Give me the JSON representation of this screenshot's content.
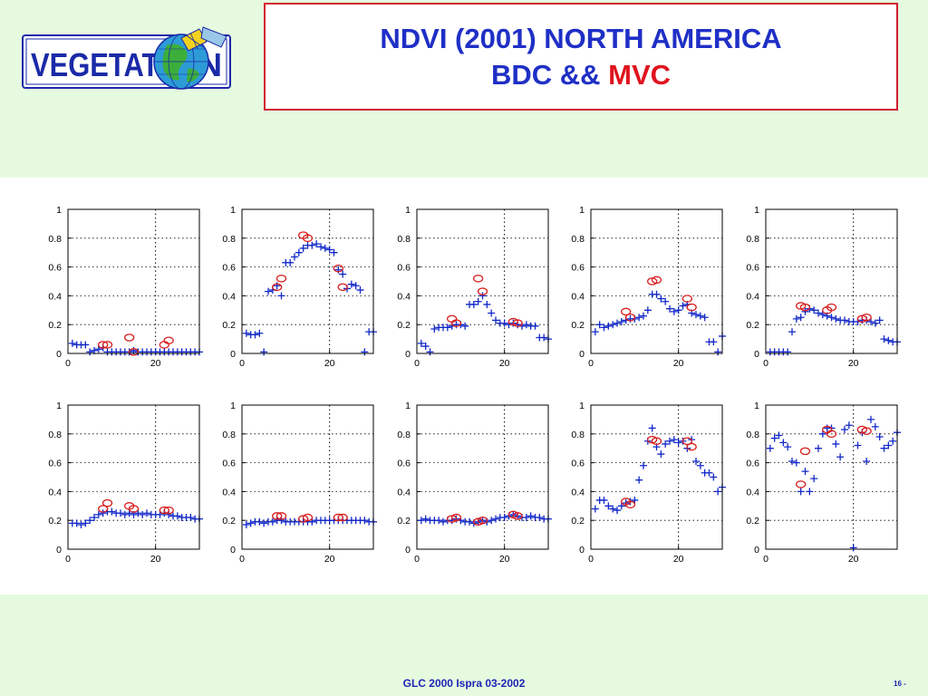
{
  "logo": {
    "text": "VEGETATI",
    "text_end": "N",
    "color": "#1a2aa8"
  },
  "header": {
    "title_line1": "NDVI (2001) NORTH AMERICA",
    "title_line2_prefix": "BDC && ",
    "title_line2_accent": "MVC"
  },
  "footer": {
    "text": "GLC 2000 Ispra 03-2002",
    "page": "16 -"
  },
  "colors": {
    "bdc": "#1228c8",
    "mvc": "#d81e1e",
    "title": "#1f2fc6",
    "accent": "#e0141e",
    "band": "#e6fae0"
  },
  "chart_data": [
    {
      "type": "scatter",
      "xlim": [
        0,
        30
      ],
      "ylim": [
        0,
        1
      ],
      "xticks": [
        0,
        20
      ],
      "yticks": [
        0,
        0.2,
        0.4,
        0.6,
        0.8,
        1
      ],
      "vline": 20,
      "series": [
        {
          "marker": "plus",
          "x": [
            1,
            2,
            3,
            4,
            5,
            6,
            7,
            8,
            9,
            10,
            11,
            12,
            13,
            14,
            15,
            16,
            17,
            18,
            19,
            20,
            21,
            22,
            23,
            24,
            25,
            26,
            27,
            28,
            29,
            30
          ],
          "y": [
            0.07,
            0.06,
            0.06,
            0.06,
            0.01,
            0.02,
            0.03,
            0.04,
            0.01,
            0.01,
            0.01,
            0.01,
            0.01,
            0.01,
            0.02,
            0.01,
            0.01,
            0.01,
            0.01,
            0.01,
            0.01,
            0.01,
            0.01,
            0.01,
            0.01,
            0.01,
            0.01,
            0.01,
            0.01,
            0.01
          ]
        },
        {
          "marker": "circle",
          "x": [
            8,
            9,
            14,
            15,
            22,
            23
          ],
          "y": [
            0.06,
            0.06,
            0.11,
            0.01,
            0.06,
            0.09
          ]
        }
      ]
    },
    {
      "type": "scatter",
      "xlim": [
        0,
        30
      ],
      "ylim": [
        0,
        1
      ],
      "xticks": [
        0,
        20
      ],
      "yticks": [
        0,
        0.2,
        0.4,
        0.6,
        0.8,
        1
      ],
      "vline": 20,
      "series": [
        {
          "marker": "plus",
          "x": [
            1,
            2,
            3,
            4,
            5,
            6,
            7,
            8,
            9,
            10,
            11,
            12,
            13,
            14,
            15,
            16,
            17,
            18,
            19,
            20,
            21,
            22,
            23,
            24,
            25,
            26,
            27,
            28,
            29,
            30
          ],
          "y": [
            0.14,
            0.13,
            0.13,
            0.14,
            0.01,
            0.43,
            0.44,
            0.47,
            0.4,
            0.63,
            0.63,
            0.67,
            0.7,
            0.73,
            0.75,
            0.75,
            0.76,
            0.74,
            0.73,
            0.72,
            0.7,
            0.58,
            0.55,
            0.45,
            0.48,
            0.47,
            0.44,
            0.01,
            0.15,
            0.15
          ]
        },
        {
          "marker": "circle",
          "x": [
            8,
            9,
            14,
            15,
            22,
            23
          ],
          "y": [
            0.46,
            0.52,
            0.82,
            0.8,
            0.59,
            0.46
          ]
        }
      ]
    },
    {
      "type": "scatter",
      "xlim": [
        0,
        30
      ],
      "ylim": [
        0,
        1
      ],
      "xticks": [
        0,
        20
      ],
      "yticks": [
        0,
        0.2,
        0.4,
        0.6,
        0.8,
        1
      ],
      "vline": 20,
      "series": [
        {
          "marker": "plus",
          "x": [
            1,
            2,
            3,
            4,
            5,
            6,
            7,
            8,
            9,
            10,
            11,
            12,
            13,
            14,
            15,
            16,
            17,
            18,
            19,
            20,
            21,
            22,
            23,
            24,
            25,
            26,
            27,
            28,
            29,
            30
          ],
          "y": [
            0.07,
            0.05,
            0.01,
            0.17,
            0.18,
            0.18,
            0.18,
            0.19,
            0.2,
            0.2,
            0.19,
            0.34,
            0.34,
            0.36,
            0.4,
            0.34,
            0.28,
            0.23,
            0.21,
            0.21,
            0.2,
            0.21,
            0.2,
            0.19,
            0.2,
            0.19,
            0.19,
            0.11,
            0.11,
            0.1
          ]
        },
        {
          "marker": "circle",
          "x": [
            8,
            9,
            14,
            15,
            22,
            23
          ],
          "y": [
            0.24,
            0.21,
            0.52,
            0.43,
            0.22,
            0.21
          ]
        }
      ]
    },
    {
      "type": "scatter",
      "xlim": [
        0,
        30
      ],
      "ylim": [
        0,
        1
      ],
      "xticks": [
        0,
        20
      ],
      "yticks": [
        0,
        0.2,
        0.4,
        0.6,
        0.8,
        1
      ],
      "vline": 20,
      "series": [
        {
          "marker": "plus",
          "x": [
            1,
            2,
            3,
            4,
            5,
            6,
            7,
            8,
            9,
            10,
            11,
            12,
            13,
            14,
            15,
            16,
            17,
            18,
            19,
            20,
            21,
            22,
            23,
            24,
            25,
            26,
            27,
            28,
            29,
            30
          ],
          "y": [
            0.15,
            0.2,
            0.18,
            0.19,
            0.2,
            0.21,
            0.22,
            0.23,
            0.24,
            0.24,
            0.25,
            0.26,
            0.3,
            0.41,
            0.41,
            0.38,
            0.36,
            0.31,
            0.29,
            0.3,
            0.33,
            0.34,
            0.28,
            0.27,
            0.26,
            0.25,
            0.08,
            0.08,
            0.01,
            0.12
          ]
        },
        {
          "marker": "circle",
          "x": [
            8,
            9,
            14,
            15,
            22,
            23
          ],
          "y": [
            0.29,
            0.25,
            0.5,
            0.51,
            0.38,
            0.32
          ]
        }
      ]
    },
    {
      "type": "scatter",
      "xlim": [
        0,
        30
      ],
      "ylim": [
        0,
        1
      ],
      "xticks": [
        0,
        20
      ],
      "yticks": [
        0,
        0.2,
        0.4,
        0.6,
        0.8,
        1
      ],
      "vline": 20,
      "series": [
        {
          "marker": "plus",
          "x": [
            1,
            2,
            3,
            4,
            5,
            6,
            7,
            8,
            9,
            10,
            11,
            12,
            13,
            14,
            15,
            16,
            17,
            18,
            19,
            20,
            21,
            22,
            23,
            24,
            25,
            26,
            27,
            28,
            29,
            30
          ],
          "y": [
            0.01,
            0.01,
            0.01,
            0.01,
            0.01,
            0.15,
            0.24,
            0.25,
            0.29,
            0.31,
            0.3,
            0.28,
            0.27,
            0.26,
            0.25,
            0.24,
            0.23,
            0.23,
            0.22,
            0.22,
            0.22,
            0.23,
            0.23,
            0.22,
            0.21,
            0.23,
            0.1,
            0.09,
            0.08,
            0.08
          ]
        },
        {
          "marker": "circle",
          "x": [
            8,
            9,
            14,
            15,
            22,
            23
          ],
          "y": [
            0.33,
            0.32,
            0.3,
            0.32,
            0.24,
            0.25
          ]
        }
      ]
    },
    {
      "type": "scatter",
      "xlim": [
        0,
        30
      ],
      "ylim": [
        0,
        1
      ],
      "xticks": [
        0,
        20
      ],
      "yticks": [
        0,
        0.2,
        0.4,
        0.6,
        0.8,
        1
      ],
      "vline": 20,
      "series": [
        {
          "marker": "plus",
          "x": [
            1,
            2,
            3,
            4,
            5,
            6,
            7,
            8,
            9,
            10,
            11,
            12,
            13,
            14,
            15,
            16,
            17,
            18,
            19,
            20,
            21,
            22,
            23,
            24,
            25,
            26,
            27,
            28,
            29,
            30
          ],
          "y": [
            0.18,
            0.18,
            0.17,
            0.18,
            0.2,
            0.22,
            0.24,
            0.25,
            0.26,
            0.26,
            0.25,
            0.25,
            0.24,
            0.25,
            0.24,
            0.25,
            0.24,
            0.25,
            0.24,
            0.24,
            0.24,
            0.25,
            0.24,
            0.23,
            0.23,
            0.22,
            0.22,
            0.22,
            0.21,
            0.21
          ]
        },
        {
          "marker": "circle",
          "x": [
            8,
            9,
            14,
            15,
            22,
            23
          ],
          "y": [
            0.28,
            0.32,
            0.3,
            0.28,
            0.27,
            0.27
          ]
        }
      ]
    },
    {
      "type": "scatter",
      "xlim": [
        0,
        30
      ],
      "ylim": [
        0,
        1
      ],
      "xticks": [
        0,
        20
      ],
      "yticks": [
        0,
        0.2,
        0.4,
        0.6,
        0.8,
        1
      ],
      "vline": 20,
      "series": [
        {
          "marker": "plus",
          "x": [
            1,
            2,
            3,
            4,
            5,
            6,
            7,
            8,
            9,
            10,
            11,
            12,
            13,
            14,
            15,
            16,
            17,
            18,
            19,
            20,
            21,
            22,
            23,
            24,
            25,
            26,
            27,
            28,
            29,
            30
          ],
          "y": [
            0.17,
            0.18,
            0.19,
            0.19,
            0.18,
            0.19,
            0.19,
            0.2,
            0.2,
            0.19,
            0.19,
            0.19,
            0.19,
            0.19,
            0.19,
            0.19,
            0.2,
            0.2,
            0.2,
            0.2,
            0.2,
            0.2,
            0.2,
            0.2,
            0.2,
            0.2,
            0.2,
            0.2,
            0.19,
            0.19
          ]
        },
        {
          "marker": "circle",
          "x": [
            8,
            9,
            14,
            15,
            22,
            23
          ],
          "y": [
            0.23,
            0.23,
            0.21,
            0.22,
            0.22,
            0.22
          ]
        }
      ]
    },
    {
      "type": "scatter",
      "xlim": [
        0,
        30
      ],
      "ylim": [
        0,
        1
      ],
      "xticks": [
        0,
        20
      ],
      "yticks": [
        0,
        0.2,
        0.4,
        0.6,
        0.8,
        1
      ],
      "vline": 20,
      "series": [
        {
          "marker": "plus",
          "x": [
            1,
            2,
            3,
            4,
            5,
            6,
            7,
            8,
            9,
            10,
            11,
            12,
            13,
            14,
            15,
            16,
            17,
            18,
            19,
            20,
            21,
            22,
            23,
            24,
            25,
            26,
            27,
            28,
            29,
            30
          ],
          "y": [
            0.2,
            0.21,
            0.2,
            0.2,
            0.2,
            0.19,
            0.2,
            0.2,
            0.21,
            0.2,
            0.19,
            0.19,
            0.18,
            0.19,
            0.2,
            0.19,
            0.2,
            0.21,
            0.22,
            0.22,
            0.23,
            0.24,
            0.23,
            0.22,
            0.22,
            0.23,
            0.22,
            0.22,
            0.21,
            0.21
          ]
        },
        {
          "marker": "circle",
          "x": [
            8,
            9,
            14,
            15,
            22,
            23
          ],
          "y": [
            0.21,
            0.22,
            0.19,
            0.2,
            0.24,
            0.23
          ]
        }
      ]
    },
    {
      "type": "scatter",
      "xlim": [
        0,
        30
      ],
      "ylim": [
        0,
        1
      ],
      "xticks": [
        0,
        20
      ],
      "yticks": [
        0,
        0.2,
        0.4,
        0.6,
        0.8,
        1
      ],
      "vline": 20,
      "series": [
        {
          "marker": "plus",
          "x": [
            1,
            2,
            3,
            4,
            5,
            6,
            7,
            8,
            9,
            10,
            11,
            12,
            13,
            14,
            15,
            16,
            17,
            18,
            19,
            20,
            21,
            22,
            23,
            24,
            25,
            26,
            27,
            28,
            29,
            30
          ],
          "y": [
            0.28,
            0.34,
            0.34,
            0.3,
            0.28,
            0.27,
            0.3,
            0.32,
            0.33,
            0.34,
            0.48,
            0.58,
            0.75,
            0.84,
            0.71,
            0.66,
            0.73,
            0.75,
            0.76,
            0.74,
            0.75,
            0.7,
            0.76,
            0.61,
            0.58,
            0.53,
            0.53,
            0.5,
            0.4,
            0.43
          ]
        },
        {
          "marker": "circle",
          "x": [
            8,
            9,
            14,
            15,
            22,
            23
          ],
          "y": [
            0.33,
            0.31,
            0.76,
            0.75,
            0.75,
            0.71
          ]
        }
      ]
    },
    {
      "type": "scatter",
      "xlim": [
        0,
        30
      ],
      "ylim": [
        0,
        1
      ],
      "xticks": [
        0,
        20
      ],
      "yticks": [
        0,
        0.2,
        0.4,
        0.6,
        0.8,
        1
      ],
      "vline": 20,
      "series": [
        {
          "marker": "plus",
          "x": [
            1,
            2,
            3,
            4,
            5,
            6,
            7,
            8,
            9,
            10,
            11,
            12,
            13,
            14,
            15,
            16,
            17,
            18,
            19,
            20,
            21,
            22,
            23,
            24,
            25,
            26,
            27,
            28,
            29,
            30
          ],
          "y": [
            0.7,
            0.77,
            0.79,
            0.74,
            0.71,
            0.61,
            0.6,
            0.4,
            0.54,
            0.4,
            0.49,
            0.7,
            0.8,
            0.84,
            0.84,
            0.73,
            0.64,
            0.83,
            0.86,
            0.01,
            0.72,
            0.81,
            0.61,
            0.9,
            0.85,
            0.78,
            0.7,
            0.72,
            0.75,
            0.81
          ]
        },
        {
          "marker": "circle",
          "x": [
            8,
            9,
            14,
            15,
            22,
            23
          ],
          "y": [
            0.45,
            0.68,
            0.83,
            0.8,
            0.83,
            0.82
          ]
        }
      ]
    }
  ]
}
